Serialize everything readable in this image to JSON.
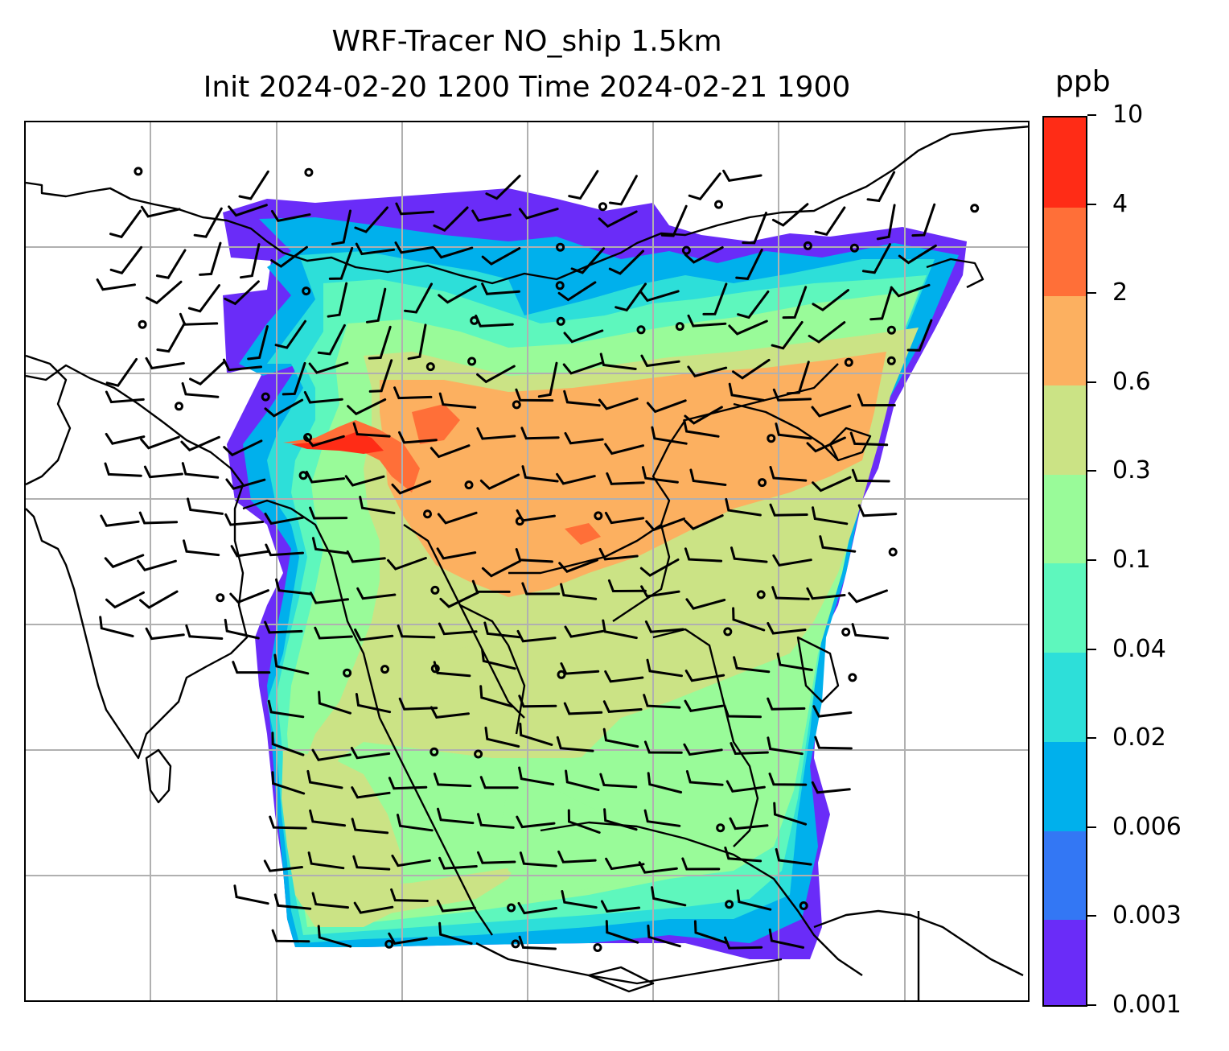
{
  "title": {
    "line1": "WRF-Tracer NO_ship 1.5km",
    "line2": "Init 2024-02-20 1200 Time 2024-02-21 1900"
  },
  "colorbar": {
    "unit": "ppb",
    "levels": [
      "0.001",
      "0.003",
      "0.006",
      "0.02",
      "0.04",
      "0.1",
      "0.3",
      "0.6",
      "2",
      "4",
      "10"
    ],
    "colors": [
      "#6a2cf8",
      "#3377f4",
      "#00b0ec",
      "#2ddfd9",
      "#5ef7bd",
      "#99fb99",
      "#cbe385",
      "#fcb060",
      "#ff6f38",
      "#ff2c16"
    ]
  },
  "map": {
    "gridlines": "on",
    "gridline_color": "#b0b0b0",
    "coastline_color": "#000000",
    "wind_barb_color": "#000000"
  }
}
